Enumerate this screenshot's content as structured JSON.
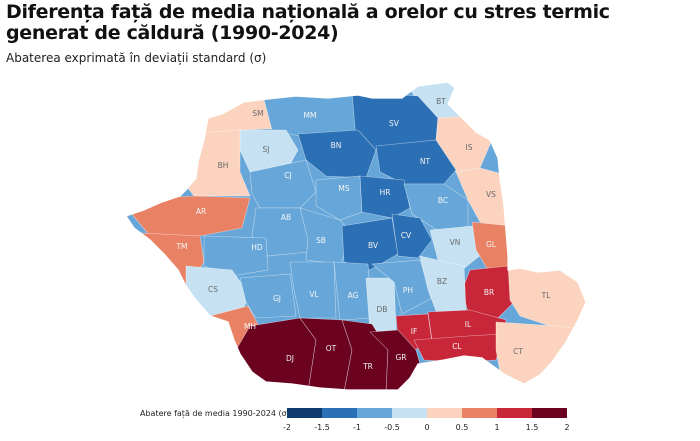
{
  "title": "Diferența față de media națională a orelor cu stres termic generat de căldură (1990-2024)",
  "subtitle": "Abaterea exprimată în deviații standard (σ)",
  "legend": {
    "title": "Abatere față de media 1990-2024 (σ)",
    "ticks": [
      "-2",
      "-1.5",
      "-1",
      "-0.5",
      "0",
      "0.5",
      "1",
      "1.5",
      "2"
    ],
    "colors": [
      "#0d3b6e",
      "#2b6fb5",
      "#66a6d8",
      "#c6e2f2",
      "#fbd3bf",
      "#e98164",
      "#c8273a",
      "#6b0220"
    ]
  },
  "chart_data": {
    "type": "choropleth",
    "value_scale": "classes",
    "counties": [
      {
        "code": "SM",
        "class": 5
      },
      {
        "code": "MM",
        "class": 3
      },
      {
        "code": "SV",
        "class": 2
      },
      {
        "code": "BT",
        "class": 4
      },
      {
        "code": "SJ",
        "class": 4
      },
      {
        "code": "BN",
        "class": 2
      },
      {
        "code": "BH",
        "class": 5
      },
      {
        "code": "IS",
        "class": 5
      },
      {
        "code": "NT",
        "class": 2
      },
      {
        "code": "CJ",
        "class": 3
      },
      {
        "code": "MS",
        "class": 3
      },
      {
        "code": "HR",
        "class": 2
      },
      {
        "code": "VS",
        "class": 5
      },
      {
        "code": "BC",
        "class": 3
      },
      {
        "code": "AR",
        "class": 6
      },
      {
        "code": "AB",
        "class": 3
      },
      {
        "code": "SB",
        "class": 3
      },
      {
        "code": "BV",
        "class": 2
      },
      {
        "code": "CV",
        "class": 2
      },
      {
        "code": "VN",
        "class": 4
      },
      {
        "code": "GL",
        "class": 6
      },
      {
        "code": "TM",
        "class": 6
      },
      {
        "code": "HD",
        "class": 3
      },
      {
        "code": "BR",
        "class": 7
      },
      {
        "code": "CS",
        "class": 4
      },
      {
        "code": "GJ",
        "class": 3
      },
      {
        "code": "VL",
        "class": 3
      },
      {
        "code": "AG",
        "class": 3
      },
      {
        "code": "DB",
        "class": 4
      },
      {
        "code": "PH",
        "class": 3
      },
      {
        "code": "BZ",
        "class": 4
      },
      {
        "code": "TL",
        "class": 5
      },
      {
        "code": "IF",
        "class": 7
      },
      {
        "code": "IL",
        "class": 7
      },
      {
        "code": "MH",
        "class": 6
      },
      {
        "code": "CL",
        "class": 7
      },
      {
        "code": "CT",
        "class": 5
      },
      {
        "code": "DJ",
        "class": 8
      },
      {
        "code": "OT",
        "class": 8
      },
      {
        "code": "TR",
        "class": 8
      },
      {
        "code": "GR",
        "class": 8
      }
    ]
  }
}
